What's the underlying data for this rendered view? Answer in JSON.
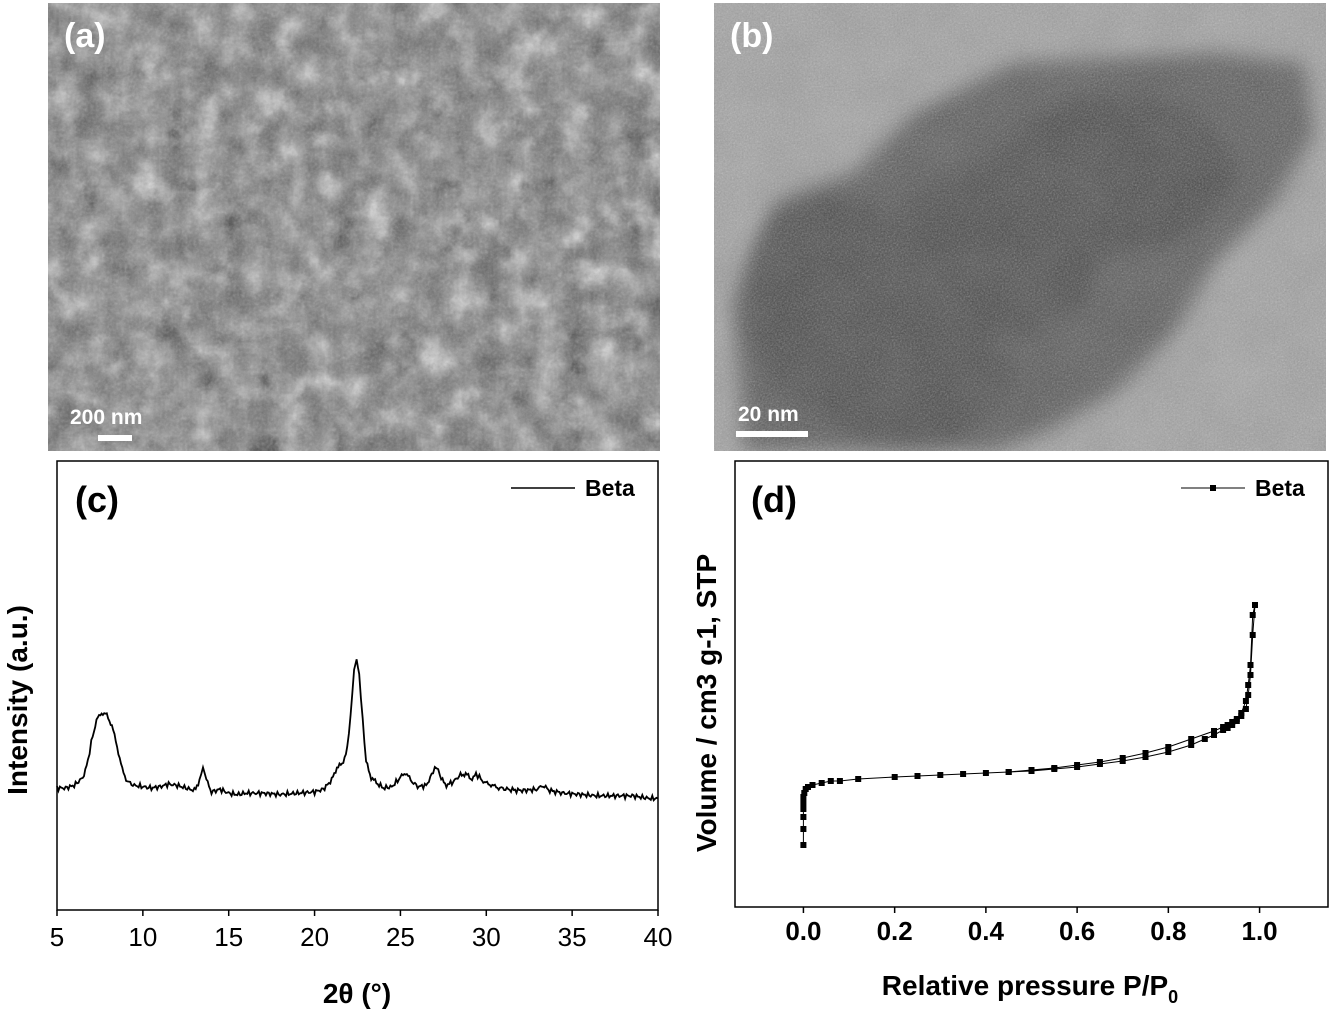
{
  "panels": {
    "a": {
      "label": "(a)",
      "scale_bar": "200 nm"
    },
    "b": {
      "label": "(b)",
      "scale_bar": "20 nm"
    }
  },
  "chart_data": [
    {
      "type": "line",
      "panel_label": "(c)",
      "xlabel": "2θ (°)",
      "ylabel": "Intensity (a.u.)",
      "xlim": [
        5,
        40
      ],
      "x_ticks": [
        5,
        10,
        15,
        20,
        25,
        30,
        35,
        40
      ],
      "y_ticks_shown": false,
      "legend": {
        "placement": "top-right",
        "entries": [
          "Beta"
        ]
      },
      "series": [
        {
          "name": "Beta",
          "x": [
            5.0,
            5.5,
            6.0,
            6.5,
            6.8,
            7.0,
            7.3,
            7.6,
            7.9,
            8.2,
            8.5,
            8.8,
            9.1,
            9.5,
            10.0,
            10.5,
            11.0,
            11.5,
            12.0,
            12.5,
            13.0,
            13.3,
            13.5,
            13.7,
            14.0,
            14.5,
            15.0,
            15.5,
            16.0,
            17.0,
            18.0,
            19.0,
            20.0,
            20.5,
            21.0,
            21.3,
            21.6,
            21.9,
            22.1,
            22.3,
            22.45,
            22.6,
            22.8,
            23.0,
            23.3,
            23.6,
            24.0,
            24.5,
            25.0,
            25.3,
            25.6,
            26.0,
            26.5,
            26.9,
            27.1,
            27.3,
            27.6,
            28.0,
            28.5,
            28.8,
            29.1,
            29.4,
            29.6,
            29.9,
            30.2,
            30.5,
            30.8,
            31.2,
            32.0,
            33.0,
            33.3,
            33.7,
            34.5,
            35.5,
            36.5,
            37.5,
            38.5,
            39.5,
            40.0
          ],
          "y": [
            0.0,
            0.0,
            0.1,
            0.4,
            1.0,
            1.8,
            2.6,
            2.9,
            2.8,
            2.4,
            1.6,
            0.7,
            0.25,
            0.1,
            0.05,
            0.0,
            0.05,
            0.15,
            0.1,
            0.0,
            -0.1,
            0.3,
            0.8,
            0.3,
            -0.15,
            -0.05,
            -0.2,
            -0.25,
            -0.2,
            -0.2,
            -0.25,
            -0.2,
            -0.15,
            -0.05,
            0.3,
            0.8,
            0.9,
            1.5,
            2.8,
            4.5,
            5.0,
            4.4,
            2.6,
            1.0,
            0.4,
            0.2,
            0.0,
            0.05,
            0.4,
            0.6,
            0.3,
            0.05,
            0.1,
            0.6,
            0.85,
            0.5,
            0.1,
            0.2,
            0.5,
            0.55,
            0.35,
            0.5,
            0.45,
            0.2,
            0.15,
            0.05,
            0.0,
            -0.05,
            -0.1,
            -0.05,
            0.1,
            -0.1,
            -0.2,
            -0.25,
            -0.3,
            -0.3,
            -0.3,
            -0.4,
            -0.4
          ]
        }
      ]
    },
    {
      "type": "line",
      "panel_label": "(d)",
      "xlabel": "Relative pressure P/P",
      "xlabel_subscript": "0",
      "ylabel": "Volume / cm3 g-1, STP",
      "xlim": [
        -0.15,
        1.15
      ],
      "x_ticks": [
        0.0,
        0.2,
        0.4,
        0.6,
        0.8,
        1.0
      ],
      "x_tick_labels": [
        "0.0",
        "0.2",
        "0.4",
        "0.6",
        "0.8",
        "1.0"
      ],
      "y_ticks_shown": false,
      "legend": {
        "placement": "top-right",
        "entries": [
          "Beta"
        ]
      },
      "series": [
        {
          "name": "Beta",
          "markers": "square",
          "x": [
            0.0,
            0.0,
            0.0,
            0.0,
            0.0,
            0.0,
            0.002,
            0.005,
            0.01,
            0.02,
            0.04,
            0.06,
            0.08,
            0.12,
            0.2,
            0.25,
            0.3,
            0.35,
            0.4,
            0.45,
            0.5,
            0.55,
            0.6,
            0.65,
            0.7,
            0.75,
            0.8,
            0.85,
            0.88,
            0.9,
            0.92,
            0.93,
            0.94,
            0.95,
            0.96,
            0.97,
            0.975,
            0.98,
            0.985,
            0.99,
            0.985,
            0.98,
            0.975,
            0.97,
            0.96,
            0.95,
            0.94,
            0.93,
            0.92,
            0.9,
            0.85,
            0.8,
            0.75,
            0.7,
            0.65,
            0.6,
            0.55,
            0.5,
            0.45
          ],
          "y": [
            0.0,
            0.08,
            0.14,
            0.18,
            0.21,
            0.24,
            0.26,
            0.28,
            0.29,
            0.3,
            0.31,
            0.32,
            0.32,
            0.33,
            0.34,
            0.345,
            0.35,
            0.355,
            0.36,
            0.365,
            0.37,
            0.38,
            0.39,
            0.405,
            0.42,
            0.44,
            0.465,
            0.5,
            0.53,
            0.55,
            0.575,
            0.585,
            0.6,
            0.62,
            0.645,
            0.68,
            0.75,
            0.85,
            1.05,
            1.2,
            1.15,
            0.9,
            0.8,
            0.72,
            0.66,
            0.63,
            0.615,
            0.6,
            0.59,
            0.57,
            0.53,
            0.49,
            0.46,
            0.435,
            0.415,
            0.4,
            0.385,
            0.375,
            0.365
          ]
        }
      ]
    }
  ]
}
